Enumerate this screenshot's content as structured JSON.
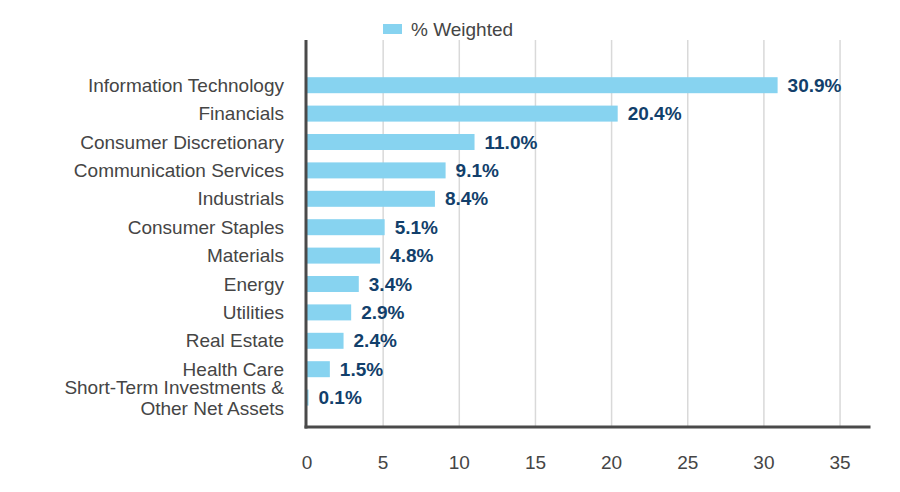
{
  "chart_data": {
    "type": "bar",
    "orientation": "horizontal",
    "categories": [
      "Information Technology",
      "Financials",
      "Consumer Discretionary",
      "Communication Services",
      "Industrials",
      "Consumer Staples",
      "Materials",
      "Energy",
      "Utilities",
      "Real Estate",
      "Health Care",
      "Short-Term Investments &\nOther Net Assets"
    ],
    "series": [
      {
        "name": "% Weighted",
        "color": "#87d3f0",
        "values": [
          30.9,
          20.4,
          11.0,
          9.1,
          8.4,
          5.1,
          4.8,
          3.4,
          2.9,
          2.4,
          1.5,
          0.1
        ],
        "value_labels": [
          "30.9%",
          "20.4%",
          "11.0%",
          "9.1%",
          "8.4%",
          "5.1%",
          "4.8%",
          "3.4%",
          "2.9%",
          "2.4%",
          "1.5%",
          "0.1%"
        ]
      }
    ],
    "xlim": [
      0,
      37
    ],
    "xticks": [
      0,
      5,
      10,
      15,
      20,
      25,
      30,
      35
    ],
    "grid": true,
    "legend": "top",
    "data_labels": true
  }
}
